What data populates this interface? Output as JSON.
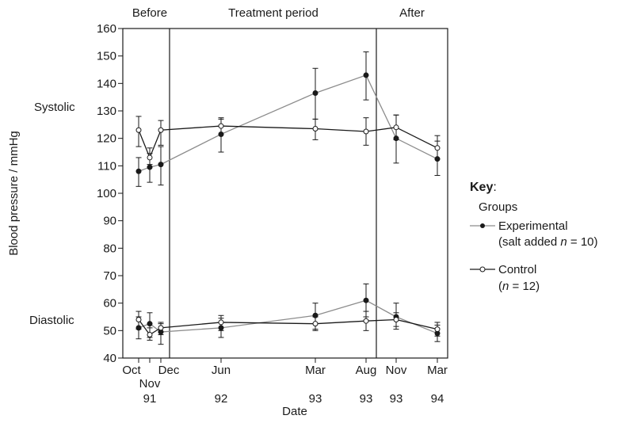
{
  "chart_data": {
    "type": "line",
    "ylabel": "Blood pressure / mmHg",
    "xlabel": "Date",
    "ylim": [
      40,
      160
    ],
    "yticks": [
      40,
      50,
      60,
      70,
      80,
      90,
      100,
      110,
      120,
      130,
      140,
      150,
      160
    ],
    "periods": [
      "Before",
      "Treatment period",
      "After"
    ],
    "row_labels": {
      "systolic": "Systolic",
      "diastolic": "Diastolic"
    },
    "x_ticks": [
      {
        "month": "Oct",
        "year": ""
      },
      {
        "month": "Nov",
        "year": "91"
      },
      {
        "month": "Dec",
        "year": ""
      },
      {
        "month": "Jun",
        "year": "92"
      },
      {
        "month": "Mar",
        "year": "93"
      },
      {
        "month": "Aug",
        "year": "93"
      },
      {
        "month": "Nov",
        "year": "93"
      },
      {
        "month": "Mar",
        "year": "94"
      }
    ],
    "key": {
      "title": "Key",
      "subtitle": "Groups",
      "experimental": {
        "line1": "Experimental",
        "line2_prefix": "(salt added ",
        "n_symbol": "n",
        "n_value": " = 10)"
      },
      "control": {
        "line1": "Control",
        "line2_prefix": "(",
        "n_symbol": "n",
        "n_value": " = 12)"
      }
    },
    "series": [
      {
        "name": "Experimental systolic",
        "group": "experimental",
        "points": [
          {
            "x": "Oct 91",
            "y": 108,
            "err_low": 102.5,
            "err_high": 113
          },
          {
            "x": "Nov 91",
            "y": 109.5,
            "err_low": 104,
            "err_high": 114.5
          },
          {
            "x": "Dec 91",
            "y": 110.5,
            "err_low": 103,
            "err_high": 117
          },
          {
            "x": "Jun 92",
            "y": 121.5,
            "err_low": 115,
            "err_high": 127
          },
          {
            "x": "Mar 93",
            "y": 136.5,
            "err_low": 127,
            "err_high": 145.5
          },
          {
            "x": "Aug 93",
            "y": 143,
            "err_low": 134,
            "err_high": 151.5
          },
          {
            "x": "Nov 93",
            "y": 120,
            "err_low": 111,
            "err_high": 128.5
          },
          {
            "x": "Mar 94",
            "y": 112.5,
            "err_low": 106.5,
            "err_high": 119
          }
        ]
      },
      {
        "name": "Control systolic",
        "group": "control",
        "points": [
          {
            "x": "Oct 91",
            "y": 123,
            "err_low": 117,
            "err_high": 128
          },
          {
            "x": "Nov 91",
            "y": 113,
            "err_low": 110.5,
            "err_high": 116.5
          },
          {
            "x": "Dec 91",
            "y": 123,
            "err_low": 117.5,
            "err_high": 126.5
          },
          {
            "x": "Jun 92",
            "y": 124.5,
            "err_low": 121.5,
            "err_high": 127.5
          },
          {
            "x": "Mar 93",
            "y": 123.5,
            "err_low": 119.5,
            "err_high": 127
          },
          {
            "x": "Aug 93",
            "y": 122.5,
            "err_low": 117.5,
            "err_high": 127.5
          },
          {
            "x": "Nov 93",
            "y": 124,
            "err_low": 119.5,
            "err_high": 128.5
          },
          {
            "x": "Mar 94",
            "y": 116.5,
            "err_low": 112.5,
            "err_high": 121
          }
        ]
      },
      {
        "name": "Experimental diastolic",
        "group": "experimental",
        "points": [
          {
            "x": "Oct 91",
            "y": 51,
            "err_low": 47,
            "err_high": 55
          },
          {
            "x": "Nov 91",
            "y": 52.5,
            "err_low": 47.5,
            "err_high": 56.5
          },
          {
            "x": "Dec 91",
            "y": 49.5,
            "err_low": 45,
            "err_high": 53
          },
          {
            "x": "Jun 92",
            "y": 51,
            "err_low": 47.5,
            "err_high": 54.5
          },
          {
            "x": "Mar 93",
            "y": 55.5,
            "err_low": 50.5,
            "err_high": 60
          },
          {
            "x": "Aug 93",
            "y": 61,
            "err_low": 55,
            "err_high": 67
          },
          {
            "x": "Nov 93",
            "y": 55,
            "err_low": 50.5,
            "err_high": 60
          },
          {
            "x": "Mar 94",
            "y": 49,
            "err_low": 46,
            "err_high": 52
          }
        ]
      },
      {
        "name": "Control diastolic",
        "group": "control",
        "points": [
          {
            "x": "Oct 91",
            "y": 54,
            "err_low": 50.5,
            "err_high": 57
          },
          {
            "x": "Nov 91",
            "y": 48.5,
            "err_low": 46.5,
            "err_high": 51
          },
          {
            "x": "Dec 91",
            "y": 51,
            "err_low": 48.5,
            "err_high": 52.5
          },
          {
            "x": "Jun 92",
            "y": 53,
            "err_low": 50,
            "err_high": 55.5
          },
          {
            "x": "Mar 93",
            "y": 52.5,
            "err_low": 50,
            "err_high": 55
          },
          {
            "x": "Aug 93",
            "y": 53.5,
            "err_low": 50,
            "err_high": 57
          },
          {
            "x": "Nov 93",
            "y": 54,
            "err_low": 51.5,
            "err_high": 56.5
          },
          {
            "x": "Mar 94",
            "y": 50.5,
            "err_low": 48,
            "err_high": 53
          }
        ]
      }
    ],
    "colors": {
      "experimental_line": "#8c8c8c",
      "control_line": "#1a1a1a",
      "marker": "#1a1a1a"
    }
  }
}
